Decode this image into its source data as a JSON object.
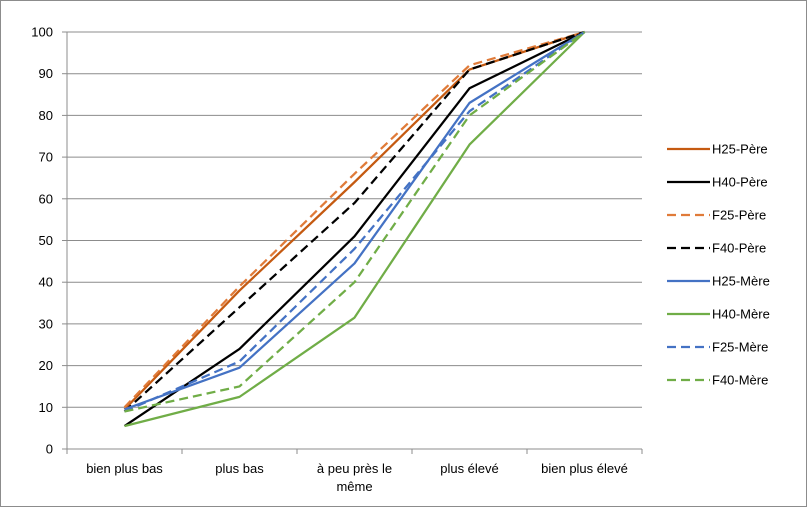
{
  "chart_data": {
    "type": "line",
    "title": "",
    "xlabel": "",
    "ylabel": "",
    "categories": [
      [
        "bien plus bas"
      ],
      [
        "plus bas"
      ],
      [
        "à peu près le",
        "même"
      ],
      [
        "plus élevé"
      ],
      [
        "bien plus élevé"
      ]
    ],
    "ylim": [
      0,
      100
    ],
    "yticks": [
      0,
      10,
      20,
      30,
      40,
      50,
      60,
      70,
      80,
      90,
      100
    ],
    "grid": true,
    "legend_position": "right",
    "series": [
      {
        "name": "H25-Père",
        "color": "#c55a11",
        "dash": "solid",
        "values": [
          9.5,
          38,
          64,
          91,
          100
        ]
      },
      {
        "name": "H40-Père",
        "color": "#000000",
        "dash": "solid",
        "values": [
          5.5,
          24,
          51,
          86.5,
          100
        ]
      },
      {
        "name": "F25-Père",
        "color": "#e07b39",
        "dash": "dashed",
        "values": [
          10,
          39,
          66,
          92,
          100
        ]
      },
      {
        "name": "F40-Père",
        "color": "#000000",
        "dash": "dashed",
        "values": [
          9,
          34,
          59,
          91,
          100
        ]
      },
      {
        "name": "H25-Mère",
        "color": "#4472c4",
        "dash": "solid",
        "values": [
          9.5,
          19.5,
          44.5,
          83,
          100
        ]
      },
      {
        "name": "H40-Mère",
        "color": "#70ad47",
        "dash": "solid",
        "values": [
          5.5,
          12.5,
          31.5,
          73,
          100
        ]
      },
      {
        "name": "F25-Mère",
        "color": "#4472c4",
        "dash": "dashed",
        "values": [
          9,
          21,
          48,
          81,
          100
        ]
      },
      {
        "name": "F40-Mère",
        "color": "#70ad47",
        "dash": "dashed",
        "values": [
          9,
          15,
          40,
          80,
          100
        ]
      }
    ]
  }
}
